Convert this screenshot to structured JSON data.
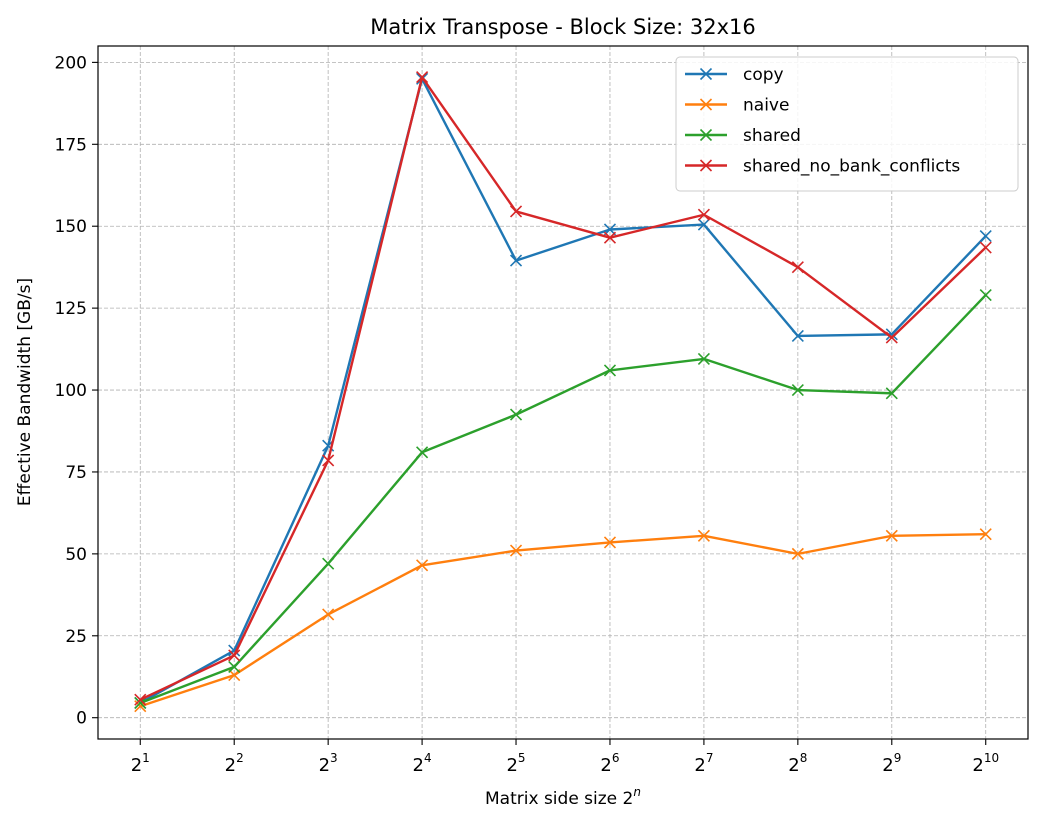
{
  "chart_data": {
    "type": "line",
    "title": "Matrix Transpose - Block Size: 32x16",
    "xlabel": "Matrix side size 2",
    "xlabel_superscript": "n",
    "ylabel": "Effective Bandwidth [GB/s]",
    "x_scale": "log2",
    "x": [
      1,
      2,
      3,
      4,
      5,
      6,
      7,
      8,
      9,
      10
    ],
    "x_tick_base": "2",
    "x_tick_exponents": [
      "1",
      "2",
      "3",
      "4",
      "5",
      "6",
      "7",
      "8",
      "9",
      "10"
    ],
    "y_ticks": [
      "0",
      "25",
      "50",
      "75",
      "100",
      "125",
      "150",
      "175",
      "200"
    ],
    "ylim": [
      -6.5,
      205
    ],
    "xlim": [
      0.55,
      10.45
    ],
    "grid": true,
    "legend_position": "top-right",
    "series": [
      {
        "name": "copy",
        "color": "#1f77b4",
        "marker": "x",
        "values": [
          4.5,
          20.5,
          83.0,
          195.0,
          139.5,
          149.0,
          150.5,
          116.5,
          117.0,
          147.0
        ]
      },
      {
        "name": "naive",
        "color": "#ff7f0e",
        "marker": "x",
        "values": [
          3.5,
          13.0,
          31.5,
          46.5,
          51.0,
          53.5,
          55.5,
          50.0,
          55.5,
          56.0
        ]
      },
      {
        "name": "shared",
        "color": "#2ca02c",
        "marker": "x",
        "values": [
          4.5,
          15.5,
          47.0,
          81.0,
          92.5,
          106.0,
          109.5,
          100.0,
          99.0,
          129.0
        ]
      },
      {
        "name": "shared_no_bank_conflicts",
        "color": "#d62728",
        "marker": "x",
        "values": [
          5.5,
          19.0,
          78.5,
          195.5,
          154.5,
          146.5,
          153.5,
          137.5,
          116.0,
          143.5
        ]
      }
    ]
  }
}
